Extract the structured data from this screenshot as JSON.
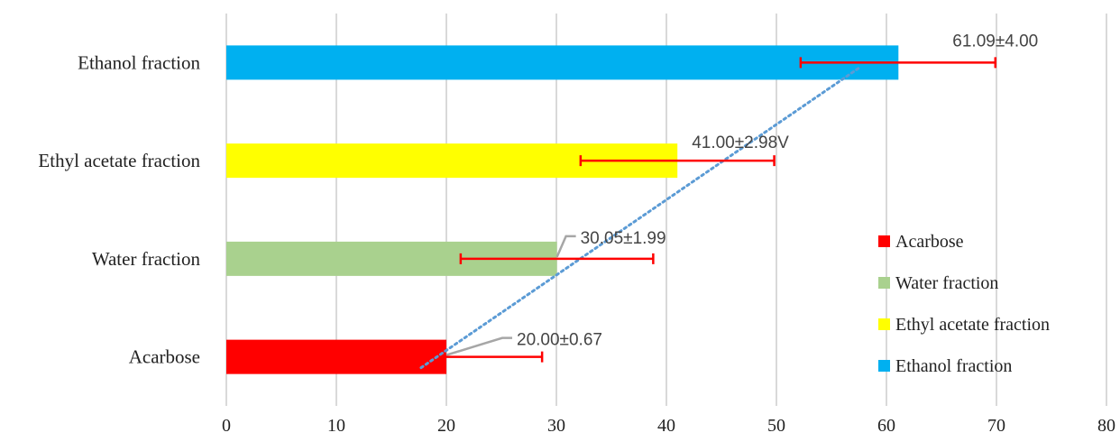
{
  "chart_data": {
    "type": "bar",
    "orientation": "horizontal",
    "categories": [
      "Acarbose",
      "Water fraction",
      "Ethyl acetate fraction",
      "Ethanol fraction"
    ],
    "values": [
      20.0,
      30.05,
      41.0,
      61.09
    ],
    "errors": [
      0.67,
      1.99,
      2.98,
      4.0
    ],
    "error_bar_values": [
      {
        "low": 20.0,
        "high": 28.7
      },
      {
        "low": 21.3,
        "high": 38.8
      },
      {
        "low": 32.2,
        "high": 49.8
      },
      {
        "low": 52.2,
        "high": 69.9
      }
    ],
    "data_labels": [
      "20.00±0.67",
      "30.05±1.99",
      "41.00±2.98V",
      "61.09±4.00"
    ],
    "colors": [
      "#ff0000",
      "#a9d18e",
      "#ffff00",
      "#00b0f0"
    ],
    "error_bar_color": "#ff0000",
    "trendline": {
      "style": "dotted",
      "color": "#5b9bd5",
      "from": {
        "x": 17.7,
        "category": "Acarbose"
      },
      "to": {
        "x": 57.5,
        "category": "Ethanol fraction"
      }
    },
    "xlim": [
      0,
      80
    ],
    "xticks": [
      "0",
      "10",
      "20",
      "30",
      "40",
      "50",
      "60",
      "70",
      "80"
    ],
    "grid": true,
    "legend": {
      "placement": "right",
      "entries": [
        "Acarbose",
        "Water fraction",
        "Ethyl acetate fraction",
        "Ethanol fraction"
      ]
    },
    "title": "",
    "xlabel": "",
    "ylabel": ""
  }
}
